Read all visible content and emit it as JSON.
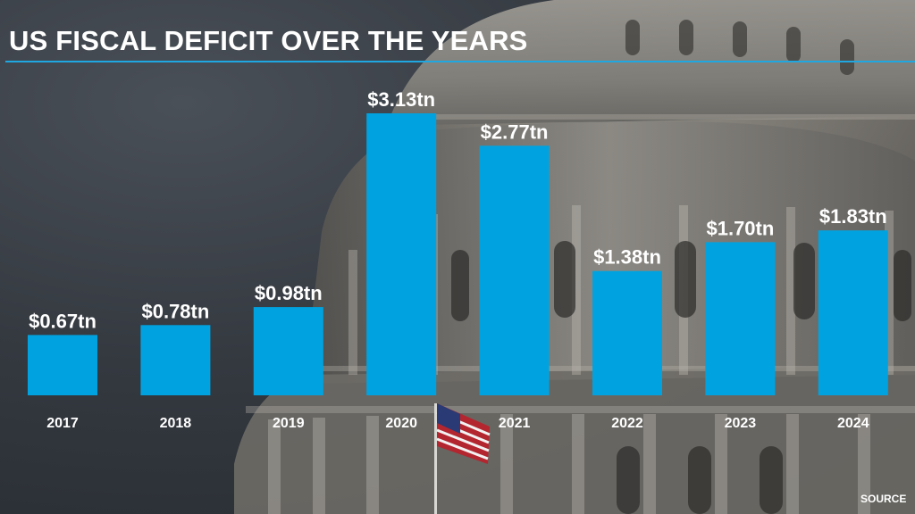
{
  "title": "US FISCAL DEFICIT OVER THE YEARS",
  "source_label": "SOURCE",
  "colors": {
    "bar": "#00a3e0",
    "accent_rule": "#1fa7e1",
    "text": "#ffffff"
  },
  "chart_data": {
    "type": "bar",
    "title": "US FISCAL DEFICIT OVER THE YEARS",
    "xlabel": "",
    "ylabel": "",
    "ylim": [
      0,
      3.13
    ],
    "grid": false,
    "categories": [
      "2017",
      "2018",
      "2019",
      "2020",
      "2021",
      "2022",
      "2023",
      "2024"
    ],
    "values": [
      0.67,
      0.78,
      0.98,
      3.13,
      2.77,
      1.38,
      1.7,
      1.83
    ],
    "data_labels": [
      "$0.67tn",
      "$0.78tn",
      "$0.98tn",
      "$3.13tn",
      "$2.77tn",
      "$1.38tn",
      "$1.70tn",
      "$1.83tn"
    ]
  }
}
